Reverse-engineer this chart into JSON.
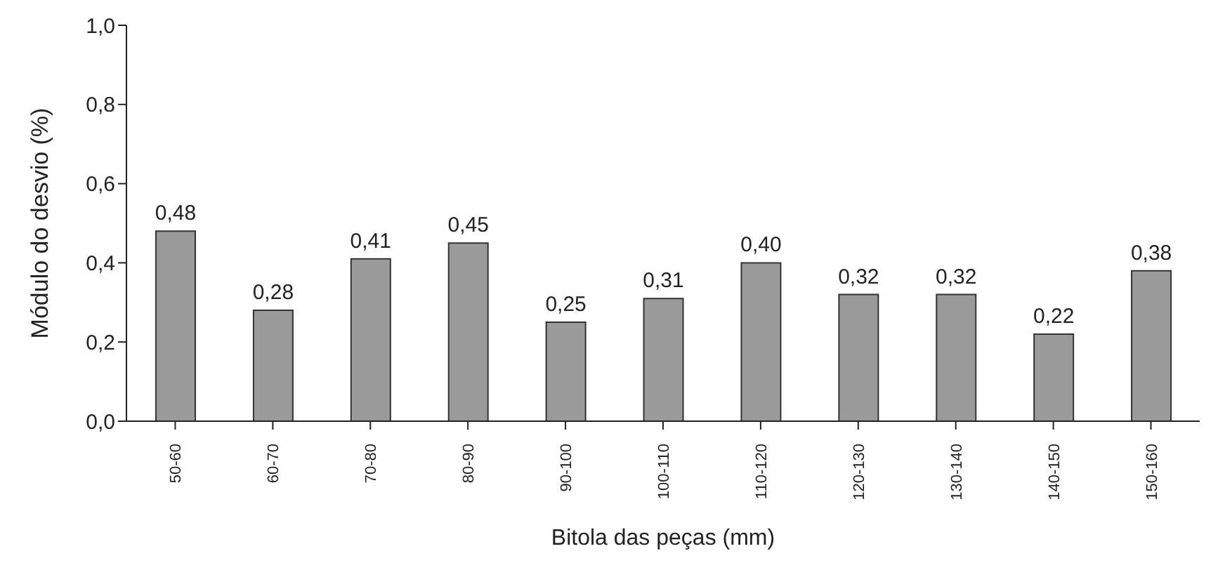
{
  "chart_data": {
    "type": "bar",
    "xlabel": "Bitola das peças (mm)",
    "ylabel": "Módulo do desvio (%)",
    "categories": [
      "50-60",
      "60-70",
      "70-80",
      "80-90",
      "90-100",
      "100-110",
      "110-120",
      "120-130",
      "130-140",
      "140-150",
      "150-160"
    ],
    "values": [
      0.48,
      0.28,
      0.41,
      0.45,
      0.25,
      0.31,
      0.4,
      0.32,
      0.32,
      0.22,
      0.38
    ],
    "value_labels": [
      "0,48",
      "0,28",
      "0,41",
      "0,45",
      "0,25",
      "0,31",
      "0,40",
      "0,32",
      "0,32",
      "0,22",
      "0,38"
    ],
    "color": "#9a9a9a",
    "ylim": [
      0,
      1
    ],
    "yticks": [
      {
        "value": 0,
        "label": "0,0"
      },
      {
        "value": 0.2,
        "label": "0,2"
      },
      {
        "value": 0.4,
        "label": "0,4"
      },
      {
        "value": 0.6,
        "label": "0,6"
      },
      {
        "value": 0.8,
        "label": "0,8"
      },
      {
        "value": 1,
        "label": "1,0"
      }
    ],
    "grid": false
  }
}
